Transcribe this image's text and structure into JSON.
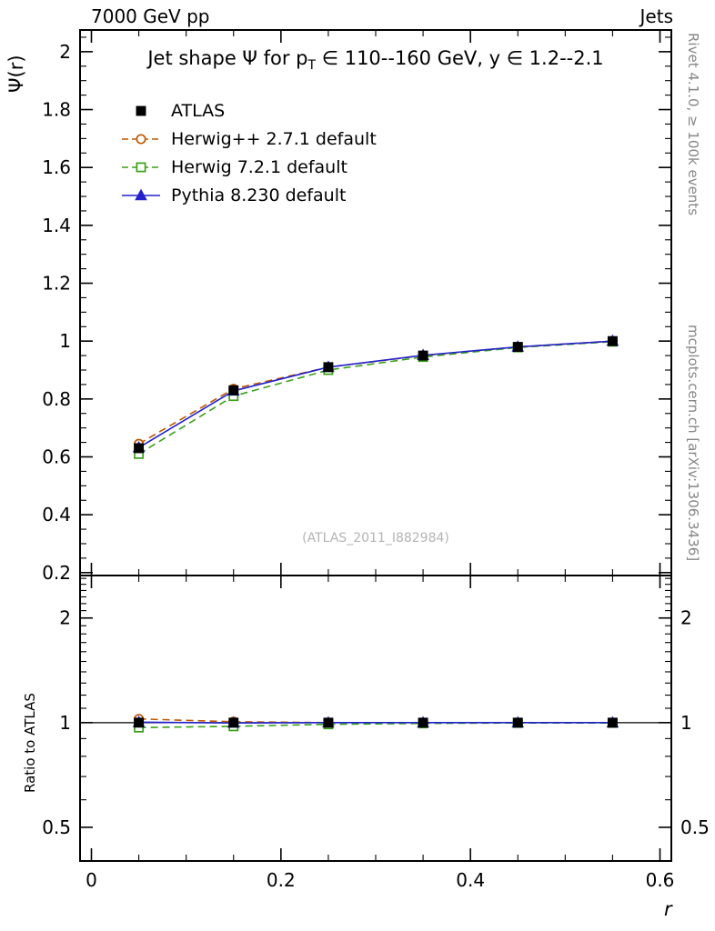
{
  "header": {
    "left_label": "7000 GeV pp",
    "right_label": "Jets"
  },
  "side_texts": {
    "top_right": "Rivet 4.1.0, ≥ 100k events",
    "bottom_right": "mcplots.cern.ch [arXiv:1306.3436]"
  },
  "watermark": "(ATLAS_2011_I882984)",
  "axes": {
    "x_label": "r",
    "y_label": "Ψ(r)",
    "ratio_label": "Ratio to ATLAS"
  },
  "title_parts": {
    "pre": "Jet shape Ψ for p",
    "sub": "T",
    "post": " ∈ 110--160 GeV, y ∈ 1.2--2.1"
  },
  "chart_data": {
    "type": "line",
    "title": "Jet shape Ψ for p_T ∈ 110--160 GeV, y ∈ 1.2--2.1",
    "xlabel": "r",
    "ylabel": "Ψ(r)",
    "ratio_ylabel": "Ratio to ATLAS",
    "x": [
      0.05,
      0.15,
      0.25,
      0.35,
      0.45,
      0.55
    ],
    "xlim": [
      -0.012,
      0.612
    ],
    "xticks": [
      0,
      0.2,
      0.4,
      0.6
    ],
    "xtick_labels": [
      "0",
      "0.2",
      "0.4",
      "0.6"
    ],
    "x_minor_step": 0.05,
    "main_ylim": [
      0.19,
      2.075
    ],
    "main_yticks": [
      0.2,
      0.4,
      0.6,
      0.8,
      1,
      1.2,
      1.4,
      1.6,
      1.8,
      2
    ],
    "main_ytick_labels": [
      "0.2",
      "0.4",
      "0.6",
      "0.8",
      "1",
      "1.2",
      "1.4",
      "1.6",
      "1.8",
      "2"
    ],
    "main_y_minor_step": 0.05,
    "ratio_ylim": [
      0.4,
      2.65
    ],
    "ratio_scale": "log",
    "ratio_yticks": [
      0.5,
      1,
      2
    ],
    "ratio_ytick_labels": [
      "0.5",
      "1",
      "2"
    ],
    "grid": false,
    "legend_position": "top-left-inside",
    "series": [
      {
        "name": "ATLAS",
        "color": "#000000",
        "marker": "square",
        "fill": "filled",
        "line": "none",
        "values": [
          0.63,
          0.83,
          0.91,
          0.95,
          0.98,
          1.0
        ],
        "ratio": [
          1.0,
          1.0,
          1.0,
          1.0,
          1.0,
          1.0
        ]
      },
      {
        "name": "Herwig++ 2.7.1 default",
        "color": "#bf5700",
        "marker": "circle",
        "fill": "open",
        "line": "dashed",
        "values": [
          0.645,
          0.835,
          0.91,
          0.95,
          0.98,
          1.0
        ],
        "ratio": [
          1.025,
          1.006,
          1.0,
          1.0,
          1.0,
          1.0
        ]
      },
      {
        "name": "Herwig 7.2.1 default",
        "color": "#3aa019",
        "marker": "square",
        "fill": "open",
        "line": "dashed",
        "values": [
          0.61,
          0.81,
          0.9,
          0.945,
          0.978,
          0.998
        ],
        "ratio": [
          0.968,
          0.976,
          0.989,
          0.995,
          0.998,
          0.998
        ]
      },
      {
        "name": "Pythia 8.230 default",
        "color": "#2222cc",
        "marker": "triangle",
        "fill": "filled",
        "line": "solid",
        "values": [
          0.632,
          0.828,
          0.91,
          0.951,
          0.98,
          1.0
        ],
        "ratio": [
          1.003,
          0.998,
          1.0,
          1.0,
          1.0,
          1.0
        ]
      }
    ]
  }
}
